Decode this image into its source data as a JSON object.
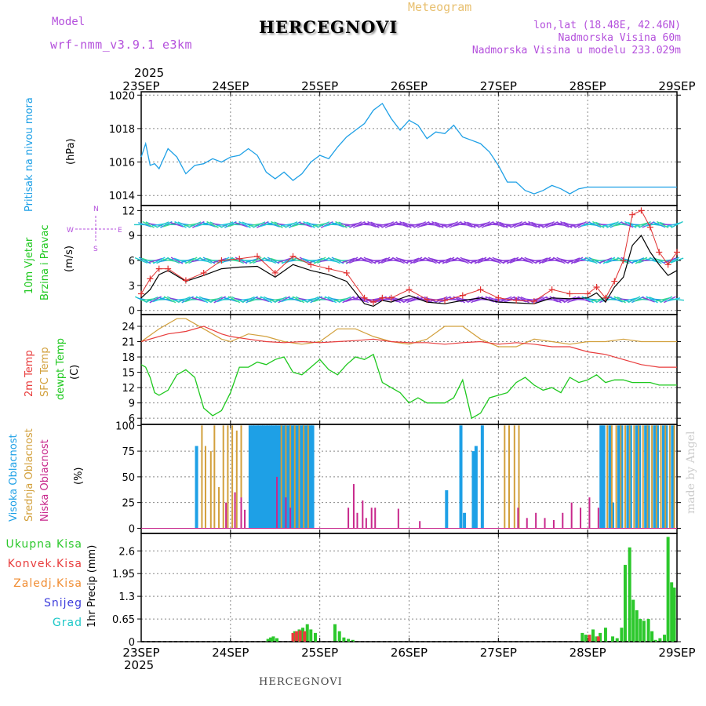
{
  "header": {
    "model_label": "Model",
    "model_name": "wrf-nmm_v3.9.1 e3km",
    "title": "HERCEGNOVI",
    "meteogram_label": "Meteogram",
    "lonlat": "lon,lat (18.48E, 42.46N)",
    "altitude": "Nadmorska Visina 60m",
    "model_altitude": "Nadmorska Visina u modelu 233.029m",
    "year_top": "2025",
    "year_bottom": "2025",
    "footer_station": "HERCEGNOVI",
    "credit": "made by Angel"
  },
  "colors": {
    "pressure": "#1ea0e6",
    "wind_label": "#1fc81f",
    "windspeed": "#000000",
    "gust": "#e03030",
    "temp2m": "#e83c3c",
    "sfc": "#d2a03c",
    "dewpt": "#1ec81e",
    "high_cloud": "#1ea0e6",
    "mid_cloud": "#d2a03c",
    "low_cloud": "#c8288c",
    "total_precip": "#2cc82c",
    "conv_precip": "#e83c3c",
    "ice_precip": "#f08c32",
    "snow": "#3c3cdc",
    "hail": "#1ec8c8",
    "purple": "#b450dc"
  },
  "chart_data": [
    {
      "type": "line",
      "panel": "pressure",
      "ylabel_lines": [
        "Pritisak na nivou mora",
        "(hPa)"
      ],
      "x_tick_labels": [
        "23SEP",
        "24SEP",
        "25SEP",
        "26SEP",
        "27SEP",
        "28SEP",
        "29SEP"
      ],
      "yticks": [
        1014,
        1016,
        1018,
        1020
      ],
      "ylim": [
        1013.4,
        1020.2
      ],
      "series": [
        {
          "name": "Pritisak",
          "x": [
            0,
            0.05,
            0.1,
            0.15,
            0.2,
            0.3,
            0.4,
            0.5,
            0.6,
            0.7,
            0.8,
            0.9,
            1.0,
            1.1,
            1.2,
            1.3,
            1.4,
            1.5,
            1.6,
            1.7,
            1.8,
            1.9,
            2.0,
            2.1,
            2.2,
            2.3,
            2.4,
            2.5,
            2.6,
            2.7,
            2.8,
            2.9,
            3.0,
            3.1,
            3.2,
            3.3,
            3.4,
            3.5,
            3.6,
            3.7,
            3.8,
            3.9,
            4.0,
            4.1,
            4.2,
            4.3,
            4.4,
            4.5,
            4.6,
            4.7,
            4.8,
            4.9,
            5.0,
            5.1,
            5.2,
            5.3,
            5.4,
            5.5,
            5.6,
            5.7,
            5.8,
            5.9,
            6.0
          ],
          "values": [
            1016.3,
            1017.1,
            1015.8,
            1015.9,
            1015.6,
            1016.8,
            1016.3,
            1015.3,
            1015.8,
            1015.9,
            1016.2,
            1016.0,
            1016.3,
            1016.4,
            1016.8,
            1016.4,
            1015.4,
            1015.0,
            1015.4,
            1014.9,
            1015.3,
            1016.0,
            1016.4,
            1016.2,
            1016.9,
            1017.5,
            1017.9,
            1018.3,
            1019.1,
            1019.5,
            1018.6,
            1017.9,
            1018.5,
            1018.2,
            1017.4,
            1017.8,
            1017.7,
            1018.2,
            1017.5,
            1017.3,
            1017.1,
            1016.6,
            1015.8,
            1014.8,
            1014.8,
            1014.3,
            1014.1,
            1014.3,
            1014.6,
            1014.4,
            1014.1,
            1014.4,
            1014.5,
            1014.5,
            1014.5,
            1014.5,
            1014.5,
            1014.5,
            1014.5,
            1014.5,
            1014.5,
            1014.5,
            1014.5
          ]
        }
      ]
    },
    {
      "type": "line",
      "panel": "wind",
      "ylabel_lines": [
        "10m Vjetar",
        "Brzina i Pravac",
        "(m/s)"
      ],
      "compass": [
        "N",
        "W",
        "E",
        "S"
      ],
      "yticks": [
        0,
        3,
        6,
        9,
        12
      ],
      "ylim": [
        -0.5,
        12.6
      ],
      "series": [
        {
          "name": "Brzina vjetra",
          "x": [
            0,
            0.1,
            0.2,
            0.3,
            0.5,
            0.7,
            0.9,
            1.1,
            1.3,
            1.5,
            1.7,
            1.9,
            2.1,
            2.3,
            2.5,
            2.6,
            2.7,
            2.8,
            3.0,
            3.2,
            3.4,
            3.6,
            3.8,
            4.0,
            4.2,
            4.4,
            4.6,
            4.8,
            5.0,
            5.1,
            5.2,
            5.3,
            5.4,
            5.5,
            5.6,
            5.7,
            5.8,
            5.9,
            6.0
          ],
          "values": [
            1.5,
            2.5,
            4.3,
            4.8,
            3.5,
            4.2,
            5.0,
            5.2,
            5.3,
            4.0,
            5.5,
            4.8,
            4.3,
            3.5,
            0.8,
            0.5,
            1.2,
            1.0,
            1.8,
            1.0,
            0.8,
            1.2,
            1.5,
            1.0,
            0.9,
            0.8,
            1.5,
            1.4,
            1.5,
            2.1,
            1.0,
            2.8,
            4.0,
            7.8,
            9.0,
            7.0,
            5.5,
            4.2,
            4.8
          ]
        },
        {
          "name": "Udari vjetra",
          "x": [
            0,
            0.1,
            0.2,
            0.3,
            0.5,
            0.7,
            0.9,
            1.1,
            1.3,
            1.5,
            1.7,
            1.9,
            2.1,
            2.3,
            2.5,
            2.6,
            2.7,
            2.8,
            3.0,
            3.2,
            3.4,
            3.6,
            3.8,
            4.0,
            4.2,
            4.4,
            4.6,
            4.8,
            5.0,
            5.1,
            5.2,
            5.3,
            5.4,
            5.5,
            5.6,
            5.7,
            5.8,
            5.9,
            6.0
          ],
          "values": [
            2.0,
            3.8,
            5.0,
            5.0,
            3.6,
            4.5,
            6.0,
            6.2,
            6.5,
            4.5,
            6.5,
            5.5,
            5.0,
            4.5,
            1.5,
            1.0,
            1.5,
            1.5,
            2.5,
            1.3,
            1.2,
            1.8,
            2.5,
            1.5,
            1.2,
            1.1,
            2.5,
            2.0,
            2.0,
            2.8,
            1.5,
            3.5,
            6.0,
            11.5,
            12.0,
            10.0,
            7.0,
            5.5,
            7.0
          ]
        }
      ]
    },
    {
      "type": "line",
      "panel": "temperature",
      "ylabel_lines": [
        "2m Temp",
        "SFC Temp",
        "dewpt Temp",
        "(C)"
      ],
      "yticks": [
        6,
        9,
        12,
        15,
        18,
        21,
        24
      ],
      "ylim": [
        4.8,
        26.3
      ],
      "series": [
        {
          "name": "2m Temp",
          "x": [
            0,
            0.3,
            0.5,
            0.7,
            0.9,
            1.0,
            1.2,
            1.4,
            1.6,
            1.8,
            2.0,
            2.2,
            2.4,
            2.6,
            2.8,
            3.0,
            3.2,
            3.4,
            3.6,
            3.8,
            4.0,
            4.2,
            4.4,
            4.6,
            4.8,
            5.0,
            5.2,
            5.4,
            5.6,
            5.8,
            6.0
          ],
          "values": [
            21.0,
            22.5,
            23.0,
            24.0,
            22.5,
            22.0,
            21.5,
            21.0,
            20.8,
            21.0,
            20.8,
            21.0,
            21.2,
            21.5,
            21.0,
            20.8,
            20.8,
            20.5,
            20.8,
            21.0,
            20.5,
            20.8,
            20.5,
            20.0,
            20.0,
            19.0,
            18.5,
            17.5,
            16.5,
            16.0,
            16.0
          ]
        },
        {
          "name": "SFC Temp",
          "x": [
            0,
            0.2,
            0.4,
            0.5,
            0.6,
            0.7,
            0.9,
            1.0,
            1.2,
            1.4,
            1.6,
            1.8,
            2.0,
            2.2,
            2.4,
            2.6,
            2.8,
            3.0,
            3.2,
            3.4,
            3.6,
            3.8,
            4.0,
            4.2,
            4.4,
            4.6,
            4.8,
            5.0,
            5.2,
            5.4,
            5.6,
            5.8,
            6.0
          ],
          "values": [
            21.0,
            23.5,
            25.5,
            25.5,
            24.5,
            23.5,
            21.5,
            21.0,
            22.5,
            22.0,
            21.0,
            20.5,
            21.0,
            23.5,
            23.5,
            22.0,
            21.0,
            20.5,
            21.5,
            24.0,
            24.0,
            21.5,
            20.0,
            20.0,
            21.5,
            21.0,
            20.5,
            21.0,
            21.0,
            21.5,
            21.0,
            21.0,
            21.0
          ]
        },
        {
          "name": "Dewpoint",
          "x": [
            0,
            0.05,
            0.1,
            0.15,
            0.2,
            0.3,
            0.4,
            0.5,
            0.6,
            0.7,
            0.8,
            0.9,
            1.0,
            1.1,
            1.2,
            1.3,
            1.4,
            1.5,
            1.6,
            1.7,
            1.8,
            1.9,
            2.0,
            2.1,
            2.2,
            2.3,
            2.4,
            2.5,
            2.6,
            2.7,
            2.8,
            2.9,
            3.0,
            3.1,
            3.2,
            3.3,
            3.4,
            3.5,
            3.6,
            3.7,
            3.8,
            3.9,
            4.0,
            4.1,
            4.2,
            4.3,
            4.4,
            4.5,
            4.6,
            4.7,
            4.8,
            4.9,
            5.0,
            5.1,
            5.2,
            5.3,
            5.4,
            5.5,
            5.6,
            5.7,
            5.8,
            5.9,
            6.0
          ],
          "values": [
            16.5,
            16.0,
            14.0,
            11.0,
            10.5,
            11.5,
            14.5,
            15.5,
            14.0,
            8.0,
            6.5,
            7.5,
            11.0,
            16.0,
            16.0,
            17.0,
            16.5,
            17.5,
            18.0,
            15.0,
            14.5,
            16.0,
            17.5,
            15.5,
            14.5,
            16.5,
            18.0,
            17.5,
            18.5,
            13.0,
            12.0,
            11.0,
            9.0,
            10.0,
            9.0,
            9.0,
            9.0,
            10.0,
            13.5,
            6.0,
            7.0,
            10.0,
            10.5,
            11.0,
            13.0,
            14.0,
            12.5,
            11.5,
            12.0,
            11.0,
            14.0,
            13.0,
            13.5,
            14.5,
            13.0,
            13.5,
            13.5,
            13.0,
            13.0,
            13.0,
            12.5,
            12.5,
            12.5
          ]
        }
      ]
    },
    {
      "type": "bar",
      "panel": "clouds",
      "ylabel_lines": [
        "Visoka Oblacnost",
        "Srednja Oblacnost",
        "Niska Oblacnost",
        "(%)"
      ],
      "yticks": [
        0,
        25,
        50,
        75,
        100
      ],
      "ylim": [
        -5,
        101
      ],
      "series": [
        {
          "name": "Visoka",
          "x": [
            0.62,
            1.22,
            1.25,
            1.27,
            1.3,
            1.32,
            1.35,
            1.37,
            1.4,
            1.42,
            1.45,
            1.47,
            1.5,
            1.52,
            1.55,
            1.57,
            1.6,
            1.62,
            1.65,
            1.67,
            1.7,
            1.72,
            1.75,
            1.77,
            1.8,
            1.82,
            1.85,
            1.87,
            1.9,
            1.92,
            3.42,
            3.58,
            3.62,
            3.72,
            3.75,
            3.82,
            5.15,
            5.18,
            5.25,
            5.28,
            5.35,
            5.38,
            5.45,
            5.48,
            5.55,
            5.58,
            5.65,
            5.68,
            5.75,
            5.78,
            5.85,
            5.88,
            5.95
          ],
          "values": [
            80,
            100,
            100,
            100,
            100,
            100,
            100,
            100,
            100,
            100,
            100,
            100,
            100,
            100,
            100,
            100,
            100,
            100,
            100,
            100,
            100,
            100,
            100,
            100,
            100,
            100,
            100,
            100,
            100,
            100,
            37,
            100,
            15,
            75,
            80,
            100,
            100,
            100,
            100,
            25,
            100,
            100,
            100,
            100,
            100,
            100,
            100,
            100,
            100,
            100,
            100,
            100,
            100
          ]
        },
        {
          "name": "Srednja",
          "x": [
            0.68,
            0.72,
            0.78,
            0.82,
            0.87,
            0.92,
            0.97,
            1.02,
            1.07,
            1.12,
            1.57,
            1.62,
            1.67,
            1.72,
            1.77,
            1.82,
            1.87,
            4.07,
            4.12,
            4.18,
            4.23,
            5.22,
            5.27,
            5.32,
            5.37,
            5.42,
            5.47,
            5.52,
            5.57,
            5.62,
            5.67,
            5.72,
            5.77,
            5.82,
            5.87,
            5.92,
            5.97
          ],
          "values": [
            100,
            80,
            75,
            100,
            40,
            100,
            100,
            100,
            95,
            100,
            100,
            100,
            100,
            100,
            100,
            100,
            100,
            100,
            100,
            100,
            100,
            100,
            100,
            100,
            100,
            100,
            100,
            100,
            100,
            100,
            100,
            100,
            100,
            100,
            100,
            100,
            100
          ]
        },
        {
          "name": "Niska",
          "x": [
            0.95,
            1.05,
            1.12,
            1.16,
            1.52,
            1.62,
            1.67,
            2.32,
            2.38,
            2.42,
            2.48,
            2.52,
            2.58,
            2.62,
            2.88,
            3.12,
            4.22,
            4.32,
            4.42,
            4.52,
            4.62,
            4.72,
            4.82,
            4.92,
            5.02,
            5.12
          ],
          "values": [
            25,
            35,
            30,
            18,
            50,
            30,
            20,
            20,
            43,
            15,
            27,
            10,
            20,
            20,
            19,
            7,
            20,
            10,
            15,
            10,
            8,
            15,
            25,
            20,
            30,
            20
          ]
        }
      ]
    },
    {
      "type": "bar",
      "panel": "precip",
      "ylabel_lines": [
        "1hr Precip (mm)"
      ],
      "legend": [
        "Ukupna Kisa",
        "Konvek.Kisa",
        "Zaledj.Kisa",
        "Snijeg",
        "Grad"
      ],
      "x_tick_labels": [
        "23SEP",
        "24SEP",
        "25SEP",
        "26SEP",
        "27SEP",
        "28SEP",
        "29SEP"
      ],
      "yticks": [
        0,
        0.65,
        1.3,
        1.95,
        2.6
      ],
      "ylim": [
        0,
        3.1
      ],
      "series": [
        {
          "name": "Ukupna Kisa",
          "x": [
            1.42,
            1.45,
            1.48,
            1.52,
            1.72,
            1.77,
            1.81,
            1.86,
            1.9,
            1.95,
            2.17,
            2.22,
            2.27,
            2.32,
            2.37,
            4.94,
            4.98,
            5.02,
            5.06,
            5.1,
            5.14,
            5.2,
            5.28,
            5.33,
            5.38,
            5.42,
            5.47,
            5.51,
            5.55,
            5.59,
            5.63,
            5.68,
            5.72,
            5.76,
            5.81,
            5.86,
            5.9,
            5.94,
            5.97
          ],
          "values": [
            0.08,
            0.12,
            0.15,
            0.1,
            0.3,
            0.35,
            0.4,
            0.5,
            0.35,
            0.25,
            0.5,
            0.3,
            0.12,
            0.08,
            0.05,
            0.25,
            0.2,
            0.1,
            0.35,
            0.15,
            0.25,
            0.4,
            0.15,
            0.1,
            0.4,
            2.2,
            2.7,
            1.2,
            0.9,
            0.65,
            0.6,
            0.65,
            0.3,
            0.05,
            0.1,
            0.2,
            3.0,
            1.7,
            1.55
          ]
        },
        {
          "name": "Konvek.Kisa",
          "x": [
            1.7,
            1.74,
            1.78,
            1.83,
            5.02,
            5.12
          ],
          "values": [
            0.25,
            0.3,
            0.32,
            0.3,
            0.2,
            0.15
          ]
        }
      ]
    }
  ]
}
